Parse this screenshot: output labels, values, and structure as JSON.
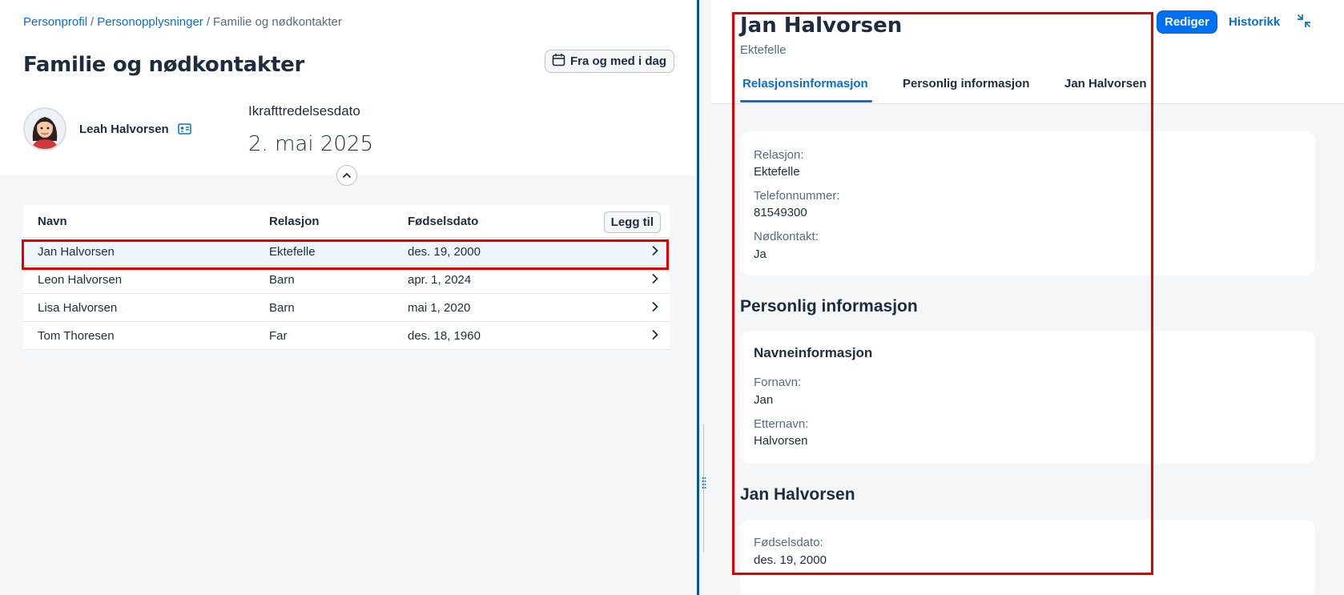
{
  "breadcrumb": {
    "item1": "Personprofil",
    "item2": "Personopplysninger",
    "current": "Familie og nødkontakter",
    "separator": "/"
  },
  "page_title": "Familie og nødkontakter",
  "date_filter_label": "Fra og med i dag",
  "employee": {
    "name": "Leah Halvorsen"
  },
  "effective": {
    "label": "Ikrafttredelsesdato",
    "date": "2. mai 2025"
  },
  "table": {
    "headers": [
      "Navn",
      "Relasjon",
      "Fødselsdato"
    ],
    "add_label": "Legg til",
    "rows": [
      {
        "name": "Jan Halvorsen",
        "relation": "Ektefelle",
        "birth": "des. 19, 2000"
      },
      {
        "name": "Leon Halvorsen",
        "relation": "Barn",
        "birth": "apr. 1, 2024"
      },
      {
        "name": "Lisa Halvorsen",
        "relation": "Barn",
        "birth": "mai 1, 2020"
      },
      {
        "name": "Tom Thoresen",
        "relation": "Far",
        "birth": "des. 18, 1960"
      }
    ]
  },
  "detail": {
    "title": "Jan Halvorsen",
    "subtitle": "Ektefelle",
    "edit_label": "Rediger",
    "history_label": "Historikk",
    "tabs": [
      "Relasjonsinformasjon",
      "Personlig informasjon",
      "Jan Halvorsen"
    ],
    "relation_card": {
      "relation_label": "Relasjon:",
      "relation_value": "Ektefelle",
      "phone_label": "Telefonnummer:",
      "phone_value": "81549300",
      "emergency_label": "Nødkontakt:",
      "emergency_value": "Ja"
    },
    "personal_section": {
      "title": "Personlig informasjon",
      "card_title": "Navneinformasjon",
      "first_label": "Fornavn:",
      "first_value": "Jan",
      "last_label": "Etternavn:",
      "last_value": "Halvorsen"
    },
    "bio_section": {
      "title": "Jan Halvorsen",
      "birth_label": "Fødselsdato:",
      "birth_value": "des. 19, 2000"
    }
  },
  "colors": {
    "accent": "#0a6ed1",
    "primary_button": "#0070f2",
    "highlight_box": "#e00000",
    "selected_row": "#eff6fb"
  },
  "icons": [
    "calendar-icon",
    "id-card-icon",
    "chevron-up-icon",
    "chevron-right-icon",
    "exit-fullscreen-icon",
    "grip-icon"
  ]
}
